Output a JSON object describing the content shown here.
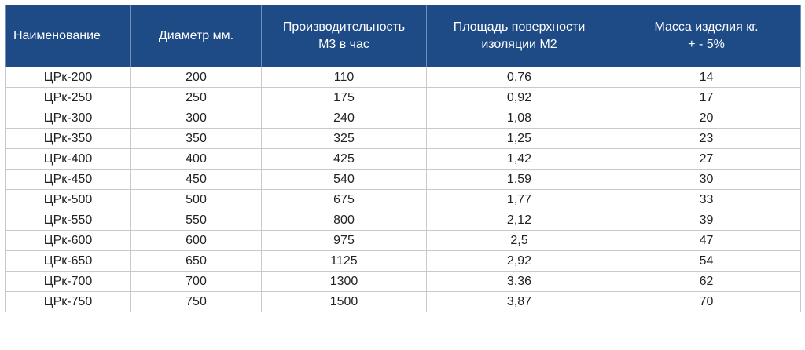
{
  "table": {
    "headers": [
      "Наименование",
      "Диаметр мм.",
      "Производительность М3 в час",
      "Площадь поверхности изоляции М2",
      "Масса изделия кг. + - 5%"
    ],
    "header_lines": [
      [
        "Наименование"
      ],
      [
        "Диаметр мм."
      ],
      [
        "Производительность",
        "М3 в час"
      ],
      [
        "Площадь поверхности",
        "изоляции М2"
      ],
      [
        "Масса изделия кг.",
        "+ - 5%"
      ]
    ],
    "rows": [
      [
        "ЦРк-200",
        "200",
        "110",
        "0,76",
        "14"
      ],
      [
        "ЦРк-250",
        "250",
        "175",
        "0,92",
        "17"
      ],
      [
        "ЦРк-300",
        "300",
        "240",
        "1,08",
        "20"
      ],
      [
        "ЦРк-350",
        "350",
        "325",
        "1,25",
        "23"
      ],
      [
        "ЦРк-400",
        "400",
        "425",
        "1,42",
        "27"
      ],
      [
        "ЦРк-450",
        "450",
        "540",
        "1,59",
        "30"
      ],
      [
        "ЦРк-500",
        "500",
        "675",
        "1,77",
        "33"
      ],
      [
        "ЦРк-550",
        "550",
        "800",
        "2,12",
        "39"
      ],
      [
        "ЦРк-600",
        "600",
        "975",
        "2,5",
        "47"
      ],
      [
        "ЦРк-650",
        "650",
        "1125",
        "2,92",
        "54"
      ],
      [
        "ЦРк-700",
        "700",
        "1300",
        "3,36",
        "62"
      ],
      [
        "ЦРк-750",
        "750",
        "1500",
        "3,87",
        "70"
      ]
    ]
  },
  "colors": {
    "header_bg": "#1e4a86",
    "header_text": "#ffffff",
    "cell_border": "#c9c9c9"
  }
}
